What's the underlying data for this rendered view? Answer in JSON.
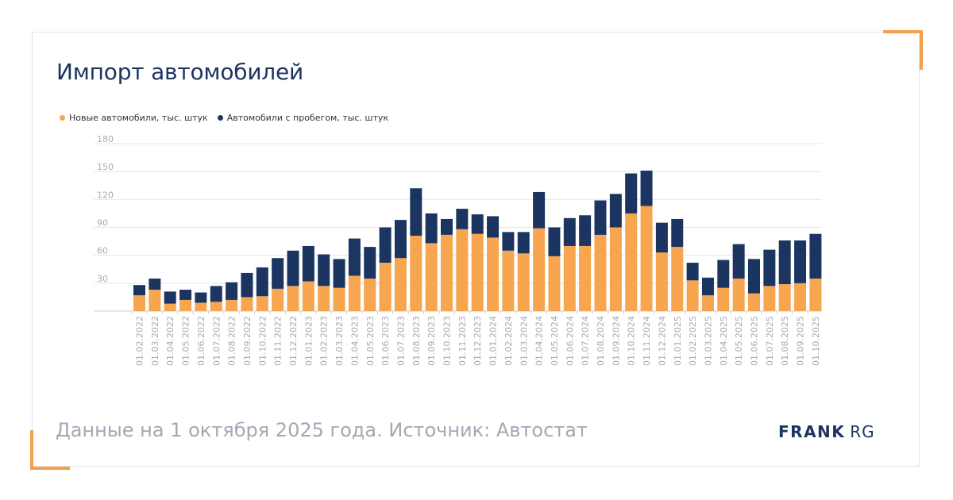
{
  "title": "Импорт автомобилей",
  "footer": "Данные на 1 октября 2025 года. Источник: Автостат",
  "logo": {
    "part1": "FRANK",
    "part2": "RG"
  },
  "colors": {
    "new": "#f7a54f",
    "used": "#1c3560",
    "accent": "#f5a04a"
  },
  "legend": [
    {
      "label": "Новые автомобили, тыс. штук",
      "color": "#f7a54f"
    },
    {
      "label": "Автомобили с пробегом, тыс. штук",
      "color": "#1c3560"
    }
  ],
  "chart_data": {
    "type": "bar",
    "stacked": true,
    "ylim": [
      0,
      180
    ],
    "yticks": [
      30,
      60,
      90,
      120,
      150,
      180
    ],
    "grid": true,
    "legend_position": "top-left",
    "categories": [
      "01.02.2022",
      "01.03.2022",
      "01.04.2022",
      "01.05.2022",
      "01.06.2022",
      "01.07.2022",
      "01.08.2022",
      "01.09.2022",
      "01.10.2022",
      "01.11.2022",
      "01.12.2022",
      "01.01.2023",
      "01.02.2023",
      "01.03.2023",
      "01.04.2023",
      "01.05.2023",
      "01.06.2023",
      "01.07.2023",
      "01.08.2023",
      "01.09.2023",
      "01.10.2023",
      "01.11.2023",
      "01.12.2023",
      "01.01.2024",
      "01.02.2024",
      "01.03.2024",
      "01.04.2024",
      "01.05.2024",
      "01.06.2024",
      "01.07.2024",
      "01.08.2024",
      "01.09.2024",
      "01.10.2024",
      "01.11.2024",
      "01.12.2024",
      "01.01.2025",
      "01.02.2025",
      "01.03.2025",
      "01.04.2025",
      "01.05.2025",
      "01.06.2025",
      "01.07.2025",
      "01.08.2025",
      "01.09.2025",
      "01.10.2025"
    ],
    "series": [
      {
        "name": "Новые автомобили, тыс. штук",
        "color": "#f7a54f",
        "values": [
          17,
          23,
          8,
          12,
          9,
          10,
          12,
          15,
          16,
          24,
          27,
          32,
          27,
          25,
          38,
          35,
          52,
          57,
          81,
          73,
          82,
          88,
          83,
          79,
          65,
          62,
          89,
          59,
          70,
          70,
          82,
          90,
          105,
          113,
          63,
          69,
          33,
          17,
          25,
          35,
          19,
          27,
          29,
          30,
          35
        ]
      },
      {
        "name": "Автомобили с пробегом, тыс. штук",
        "color": "#1c3560",
        "values": [
          11,
          12,
          13,
          11,
          11,
          17,
          19,
          26,
          31,
          33,
          38,
          38,
          34,
          31,
          40,
          34,
          38,
          41,
          51,
          32,
          17,
          22,
          21,
          23,
          20,
          23,
          39,
          31,
          30,
          33,
          37,
          36,
          43,
          38,
          32,
          30,
          19,
          19,
          30,
          37,
          37,
          39,
          47,
          46,
          48
        ]
      }
    ]
  }
}
